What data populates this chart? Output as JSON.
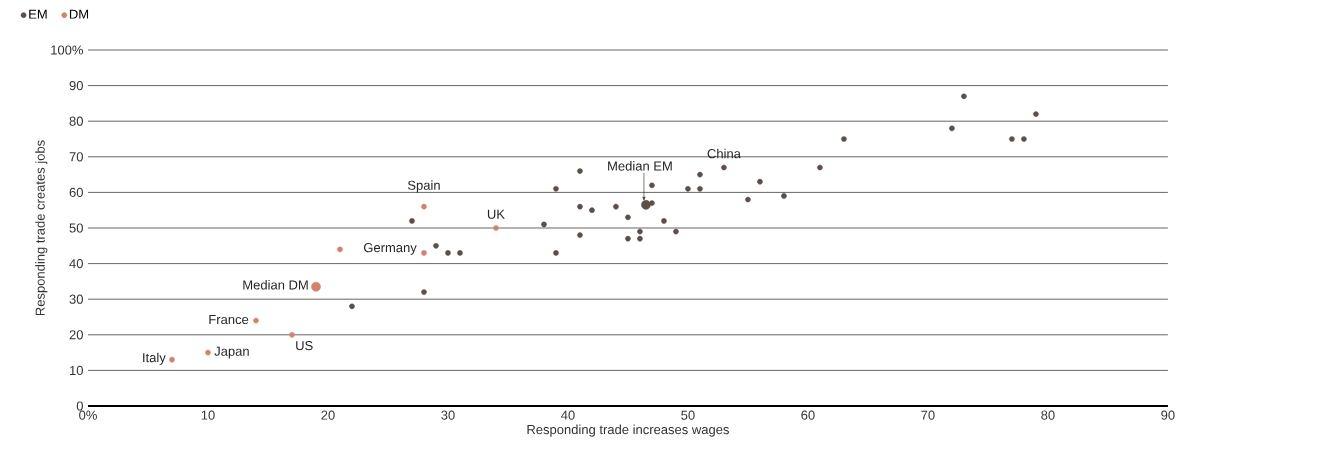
{
  "chart_data": {
    "type": "scatter",
    "xlabel": "Responding trade increases wages",
    "ylabel": "Responding trade creates jobs",
    "xlim": [
      0,
      90
    ],
    "ylim": [
      0,
      100
    ],
    "xticks": [
      {
        "value": 0,
        "label": "0%"
      },
      10,
      20,
      30,
      40,
      50,
      60,
      70,
      80,
      90
    ],
    "yticks": [
      0,
      10,
      20,
      30,
      40,
      50,
      60,
      70,
      80,
      90,
      {
        "value": 100,
        "label": "100%"
      }
    ],
    "grid": "y",
    "legend": "top left",
    "series": [
      {
        "name": "EM",
        "color": "#5b4f48",
        "x": [
          27,
          28,
          22,
          29,
          30,
          31,
          38,
          39,
          39,
          41,
          41,
          41,
          42,
          44,
          45,
          45,
          46,
          46,
          47,
          47,
          48,
          49,
          50,
          51,
          51,
          53,
          55,
          56,
          58,
          61,
          63,
          72,
          73,
          77,
          78,
          79
        ],
        "values": [
          52,
          32,
          28,
          45,
          43,
          43,
          51,
          61,
          43,
          66,
          56,
          48,
          55,
          56,
          53,
          47,
          49,
          47,
          62,
          57,
          52,
          49,
          61,
          65,
          61,
          67,
          58,
          63,
          59,
          67,
          75,
          78,
          87,
          75,
          75,
          82
        ]
      },
      {
        "name": "DM",
        "color": "#d4826a",
        "x": [
          7,
          10,
          14,
          17,
          21,
          28,
          28,
          34
        ],
        "values": [
          13,
          15,
          24,
          20,
          44,
          56,
          43,
          50
        ]
      },
      {
        "color": "#5b4f48",
        "x": [
          46.5
        ],
        "values": [
          56.5
        ]
      },
      {
        "color": "#d4826a",
        "x": [
          19
        ],
        "values": [
          33.5
        ]
      }
    ],
    "annotations": [
      {
        "text": "Spain",
        "x": 28,
        "y": 56
      },
      {
        "text": "UK",
        "x": 34,
        "y": 50
      },
      {
        "text": "Germany",
        "x": 28,
        "y": 43
      },
      {
        "text": "France",
        "x": 14,
        "y": 24
      },
      {
        "text": "US",
        "x": 17,
        "y": 20
      },
      {
        "text": "Japan",
        "x": 10,
        "y": 15
      },
      {
        "text": "Italy",
        "x": 7,
        "y": 13
      },
      {
        "text": "China",
        "x": 53,
        "y": 67
      },
      {
        "text": "Median EM",
        "x": 46.5,
        "y": 56.5
      },
      {
        "text": "Median DM",
        "x": 19,
        "y": 33.5
      }
    ]
  }
}
